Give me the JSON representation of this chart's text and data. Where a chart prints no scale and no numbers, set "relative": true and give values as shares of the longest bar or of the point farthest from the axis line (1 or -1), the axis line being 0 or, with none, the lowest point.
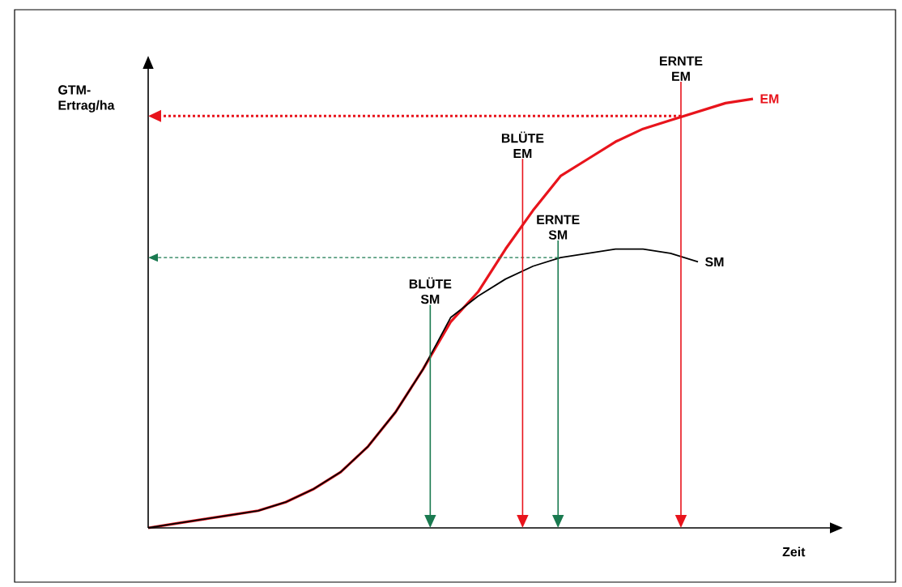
{
  "chart_data": {
    "type": "line",
    "relative": true,
    "xlabel": "Zeit",
    "ylabel": "GTM-Ertrag/ha",
    "categories": [
      null,
      null,
      null,
      null,
      null,
      null,
      null,
      null,
      null,
      null,
      null,
      null,
      null,
      null,
      null,
      null,
      null,
      null,
      null,
      null,
      null,
      null,
      null,
      null,
      null
    ],
    "series": [
      {
        "name": "EM",
        "color": "#e8141c",
        "values": [
          0,
          0.01,
          0.02,
          0.03,
          0.04,
          0.06,
          0.09,
          0.13,
          0.19,
          0.27,
          0.37,
          0.48,
          0.55,
          0.65,
          0.74,
          0.82,
          0.86,
          0.9,
          0.93,
          0.95,
          0.97,
          0.99,
          1.0,
          null,
          null
        ]
      },
      {
        "name": "SM",
        "color": "#000000",
        "values": [
          0,
          0.01,
          0.02,
          0.03,
          0.04,
          0.06,
          0.09,
          0.13,
          0.19,
          0.27,
          0.37,
          0.49,
          0.54,
          0.58,
          0.61,
          0.63,
          0.64,
          0.65,
          0.65,
          0.64,
          0.62,
          null,
          null,
          null,
          null
        ]
      }
    ],
    "ref_lines": [
      {
        "axis": "y",
        "value": 0.96,
        "color": "#e8141c",
        "line_style": "dotted"
      },
      {
        "axis": "y",
        "value": 0.63,
        "color": "#1a7a50",
        "line_style": "dashed"
      }
    ],
    "annotations": [
      "BLÜTE SM",
      "BLÜTE EM",
      "ERNTE SM",
      "ERNTE EM"
    ]
  }
}
